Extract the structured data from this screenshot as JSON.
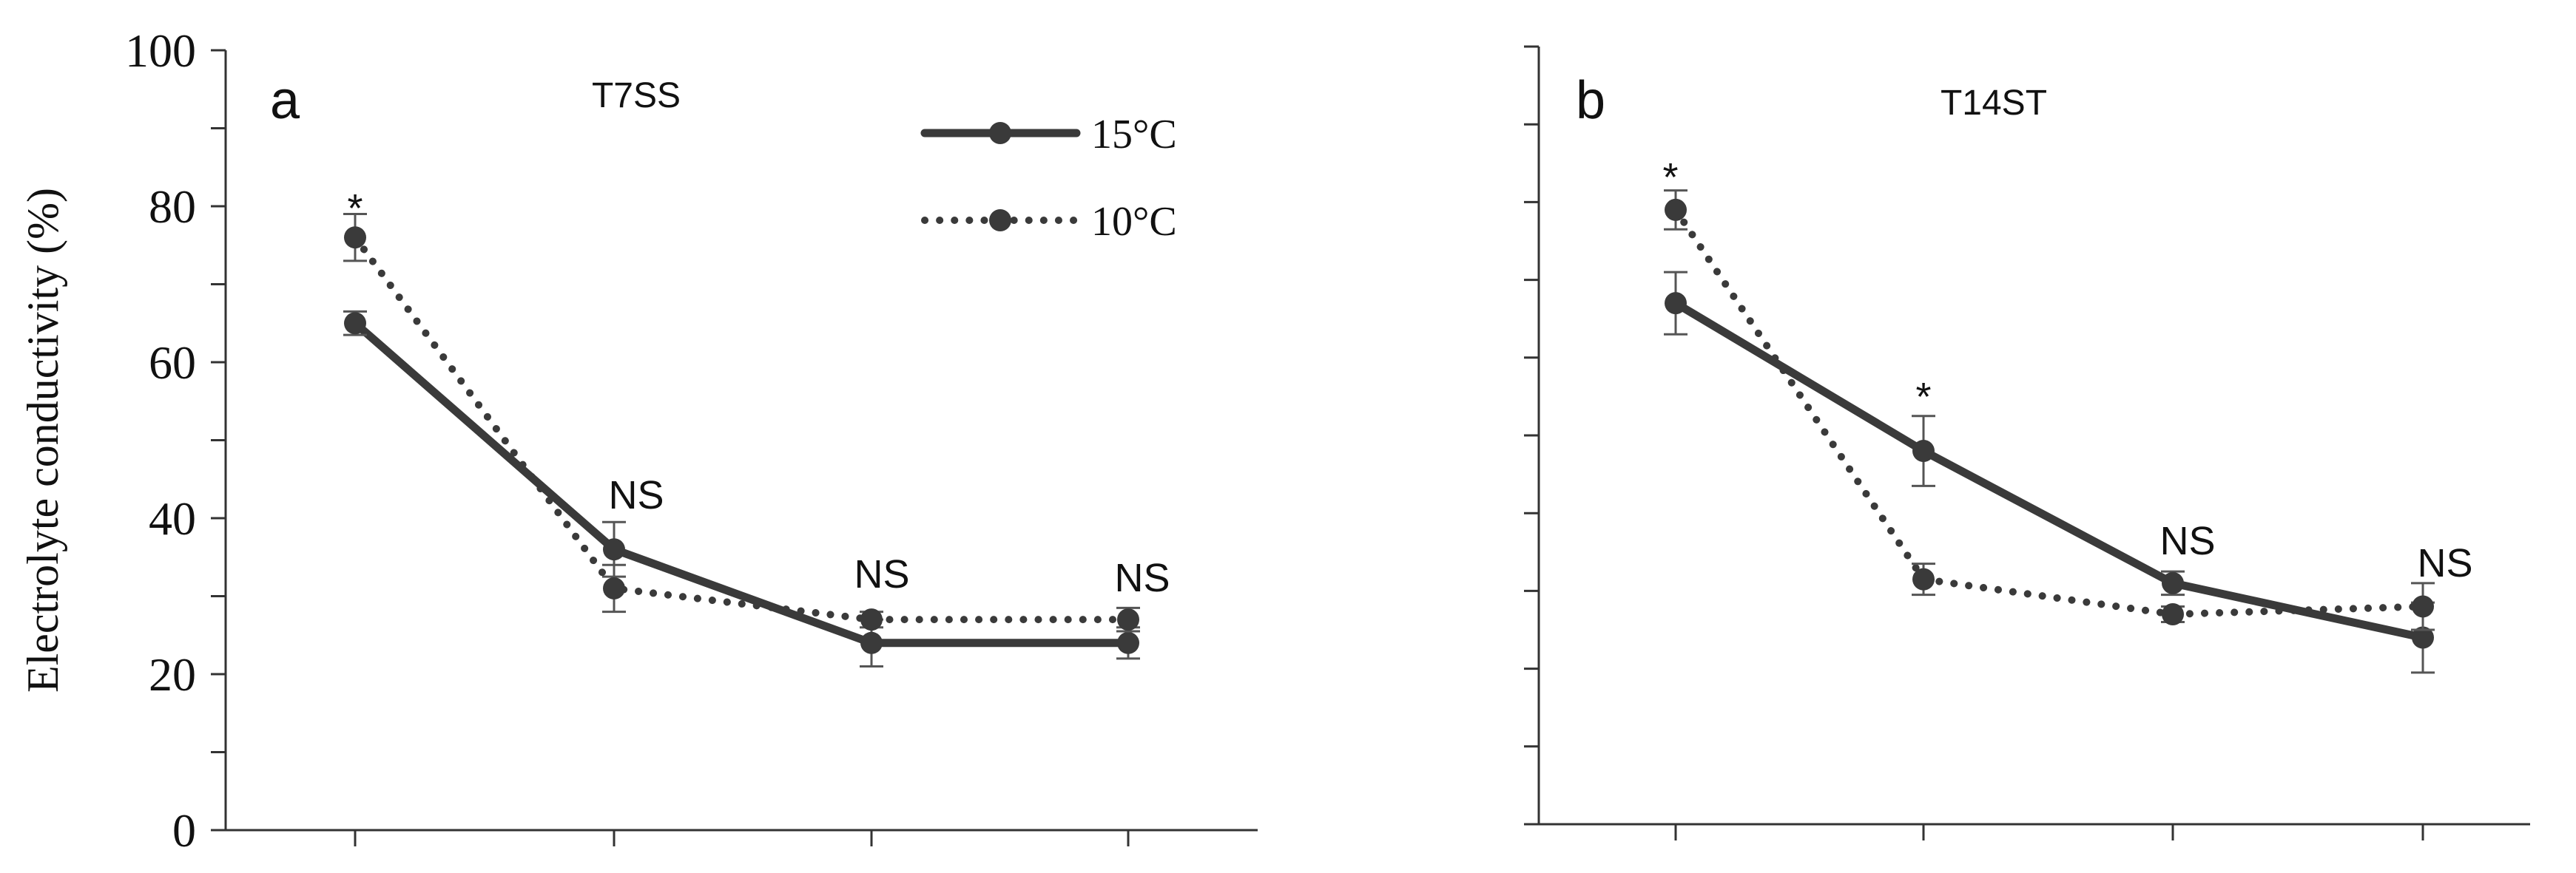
{
  "chart_data": [
    {
      "type": "line",
      "panel": "a",
      "title": "T7SS",
      "ylabel": "Electrolyte conductivity (%)",
      "xlabel": "",
      "ylim": [
        0,
        100
      ],
      "yticks": [
        0,
        20,
        40,
        60,
        80,
        100
      ],
      "grid": false,
      "legend_position": "top-right",
      "x": [
        1,
        2,
        3,
        4
      ],
      "series": [
        {
          "name": "15°C",
          "style": "solid",
          "values": [
            65,
            36,
            24,
            24
          ],
          "errors": [
            1.5,
            3.5,
            3,
            2
          ]
        },
        {
          "name": "10°C",
          "style": "dotted",
          "values": [
            76,
            31,
            27,
            27
          ],
          "errors": [
            3,
            3,
            1,
            1.5
          ]
        }
      ],
      "annotations": [
        "*",
        "NS",
        "NS",
        "NS"
      ]
    },
    {
      "type": "line",
      "panel": "b",
      "title": "T14ST",
      "ylabel": "",
      "xlabel": "",
      "ylim": [
        0,
        100
      ],
      "yticks": [
        0,
        20,
        40,
        60,
        80,
        100
      ],
      "grid": false,
      "x": [
        1,
        2,
        3,
        4
      ],
      "series": [
        {
          "values": [
            67,
            48,
            31,
            24
          ],
          "errors": [
            4,
            4.5,
            1.5,
            4.5
          ]
        },
        {
          "values": [
            79,
            31.5,
            27,
            28
          ],
          "errors": [
            2.5,
            2,
            1,
            3
          ]
        }
      ],
      "annotations": [
        "*",
        "*",
        "NS",
        "NS"
      ]
    }
  ],
  "style": {
    "line_color": "#3a3a3a",
    "error_color": "#555555"
  }
}
